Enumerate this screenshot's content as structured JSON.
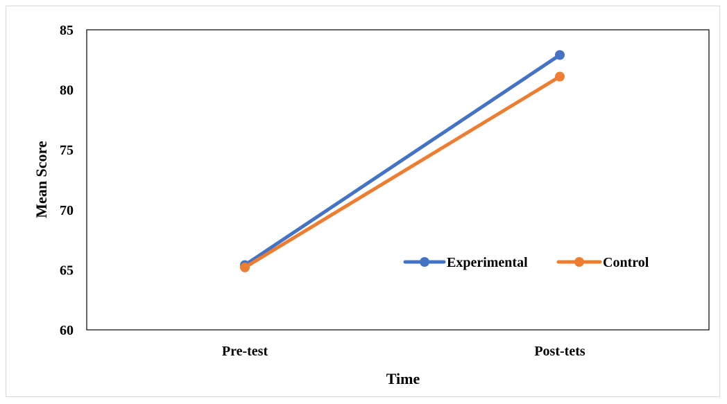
{
  "chart_data": {
    "type": "line",
    "categories": [
      "Pre-test",
      "Post-tets"
    ],
    "series": [
      {
        "name": "Experimental",
        "values": [
          65.4,
          82.9
        ],
        "color": "#4472C4"
      },
      {
        "name": "Control",
        "values": [
          65.2,
          81.1
        ],
        "color": "#ED7D31"
      }
    ],
    "xlabel": "Time",
    "ylabel": "Mean Score",
    "ylim": [
      60,
      85
    ],
    "yticks": [
      60,
      65,
      70,
      75,
      80,
      85
    ],
    "grid": false,
    "legend_position": "right"
  }
}
